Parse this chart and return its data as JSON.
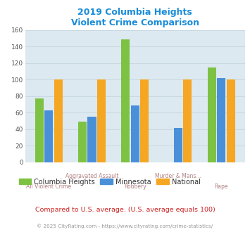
{
  "title": "2019 Columbia Heights\nViolent Crime Comparison",
  "categories": [
    "All Violent Crime",
    "Aggravated Assault",
    "Robbery",
    "Murder & Mans...",
    "Rape"
  ],
  "cat_row1": [
    "",
    "Aggravated Assault",
    "",
    "Murder & Mans...",
    ""
  ],
  "cat_row2": [
    "All Violent Crime",
    "",
    "Robbery",
    "",
    "Rape"
  ],
  "series": {
    "Columbia Heights": [
      77,
      49,
      149,
      0,
      115
    ],
    "Minnesota": [
      63,
      55,
      69,
      42,
      102
    ],
    "National": [
      100,
      100,
      100,
      100,
      100
    ]
  },
  "colors": {
    "Columbia Heights": "#7dc242",
    "Minnesota": "#4a90d9",
    "National": "#f5a623"
  },
  "ylim": [
    0,
    160
  ],
  "yticks": [
    0,
    20,
    40,
    60,
    80,
    100,
    120,
    140,
    160
  ],
  "title_color": "#1a8cd8",
  "bg_color": "#dce9f0",
  "grid_color": "#c8d8e0",
  "xlabel_color": "#b08080",
  "legend_text_color": "#333333",
  "note_text": "Compared to U.S. average. (U.S. average equals 100)",
  "note_color": "#cc2222",
  "footer_text": "© 2025 CityRating.com - https://www.cityrating.com/crime-statistics/",
  "footer_color": "#999999",
  "fig_bg": "#ffffff"
}
